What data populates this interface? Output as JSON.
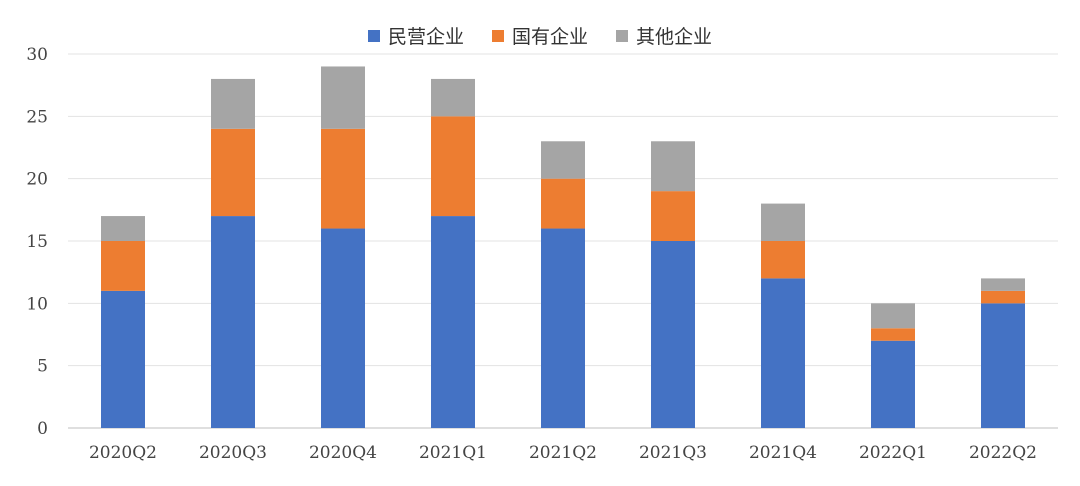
{
  "chart_data": {
    "type": "bar",
    "stacked": true,
    "categories": [
      "2020Q2",
      "2020Q3",
      "2020Q4",
      "2021Q1",
      "2021Q2",
      "2021Q3",
      "2021Q4",
      "2022Q1",
      "2022Q2"
    ],
    "series": [
      {
        "name": "民营企业",
        "color": "#4472C4",
        "values": [
          11,
          17,
          16,
          17,
          16,
          15,
          12,
          7,
          10
        ]
      },
      {
        "name": "国有企业",
        "color": "#ED7D31",
        "values": [
          4,
          7,
          8,
          8,
          4,
          4,
          3,
          1,
          1
        ]
      },
      {
        "name": "其他企业",
        "color": "#A5A5A5",
        "values": [
          2,
          4,
          5,
          3,
          3,
          4,
          3,
          2,
          1
        ]
      }
    ],
    "ylim": [
      0,
      30
    ],
    "yticks": [
      0,
      5,
      10,
      15,
      20,
      25,
      30
    ],
    "grid": true,
    "legend_position": "top"
  }
}
